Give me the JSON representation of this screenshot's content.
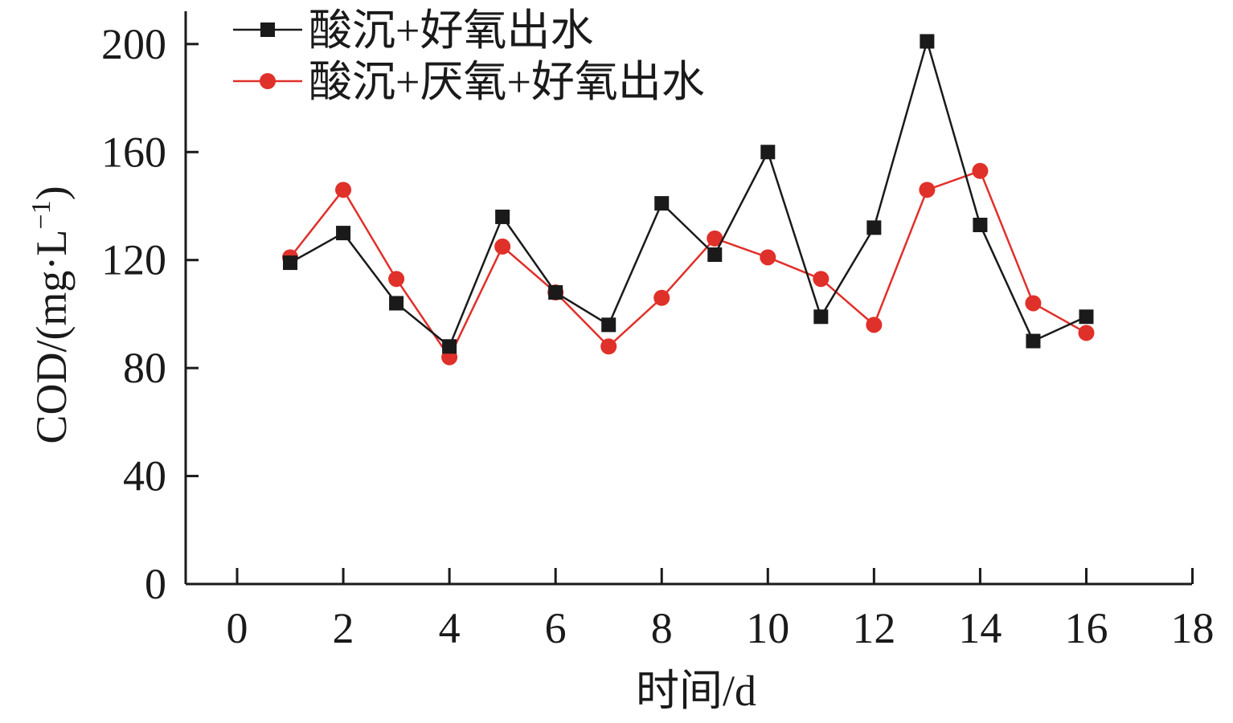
{
  "chart_data": {
    "type": "line",
    "title": "",
    "xlabel": "时间/d",
    "ylabel_main": "COD/(mg·L",
    "ylabel_sup": "−1",
    "ylabel_close": ")",
    "xlim": [
      -1,
      18
    ],
    "ylim": [
      0,
      210
    ],
    "xticks": [
      0,
      2,
      4,
      6,
      8,
      10,
      12,
      14,
      16,
      18
    ],
    "yticks": [
      0,
      40,
      80,
      120,
      160,
      200
    ],
    "grid": false,
    "legend_position": "top-left",
    "x": [
      1,
      2,
      3,
      4,
      5,
      6,
      7,
      8,
      9,
      10,
      11,
      12,
      13,
      14,
      15,
      16
    ],
    "series": [
      {
        "name": "酸沉+好氧出水",
        "marker": "square",
        "color": "#1a1a1a",
        "values": [
          119,
          130,
          104,
          88,
          136,
          108,
          96,
          141,
          122,
          160,
          99,
          132,
          201,
          133,
          90,
          99
        ]
      },
      {
        "name": "酸沉+厌氧+好氧出水",
        "marker": "circle",
        "color": "#e0302a",
        "values": [
          121,
          146,
          113,
          84,
          125,
          108,
          88,
          106,
          128,
          121,
          113,
          96,
          146,
          153,
          104,
          93
        ]
      }
    ]
  }
}
